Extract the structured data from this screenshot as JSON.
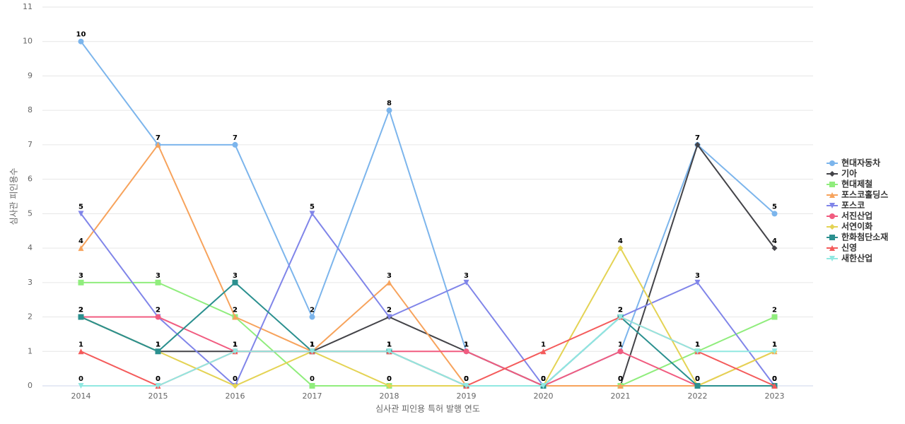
{
  "chart_data": {
    "type": "line",
    "x_label": "심사관 피인용 특허 발행 연도",
    "y_label": "심사관 피인용수",
    "categories": [
      "2014",
      "2015",
      "2016",
      "2017",
      "2018",
      "2019",
      "2020",
      "2021",
      "2022",
      "2023"
    ],
    "ylim": [
      0,
      11
    ],
    "yticks": [
      0,
      1,
      2,
      3,
      4,
      5,
      6,
      7,
      8,
      9,
      10,
      11
    ],
    "grid": true,
    "legend": "right",
    "series": [
      {
        "name": "현대자동차",
        "color": "#7cb5ec",
        "values": [
          10,
          7,
          7,
          2,
          8,
          1,
          0,
          1,
          7,
          5
        ]
      },
      {
        "name": "기아",
        "color": "#434348",
        "values": [
          2,
          1,
          1,
          1,
          2,
          1,
          0,
          0,
          7,
          4
        ]
      },
      {
        "name": "현대제철",
        "color": "#90ed7d",
        "values": [
          3,
          3,
          2,
          0,
          0,
          0,
          0,
          0,
          1,
          2
        ]
      },
      {
        "name": "포스코홀딩스",
        "color": "#f7a35c",
        "values": [
          4,
          7,
          2,
          1,
          3,
          0,
          0,
          0,
          0,
          1
        ]
      },
      {
        "name": "포스코",
        "color": "#8085e9",
        "values": [
          5,
          2,
          0,
          5,
          2,
          3,
          0,
          2,
          3,
          0
        ]
      },
      {
        "name": "서진산업",
        "color": "#f15c80",
        "values": [
          2,
          2,
          1,
          1,
          1,
          1,
          0,
          1,
          0,
          0
        ]
      },
      {
        "name": "서연이화",
        "color": "#e4d354",
        "values": [
          2,
          1,
          0,
          1,
          0,
          0,
          0,
          4,
          0,
          1
        ]
      },
      {
        "name": "한화첨단소재",
        "color": "#2b908f",
        "values": [
          2,
          1,
          3,
          1,
          1,
          0,
          0,
          2,
          0,
          0
        ]
      },
      {
        "name": "신영",
        "color": "#f45b5b",
        "values": [
          1,
          0,
          1,
          1,
          1,
          0,
          1,
          2,
          1,
          0
        ]
      },
      {
        "name": "새한산업",
        "color": "#91e8e1",
        "values": [
          0,
          0,
          1,
          1,
          1,
          0,
          0,
          2,
          1,
          1
        ]
      }
    ]
  }
}
